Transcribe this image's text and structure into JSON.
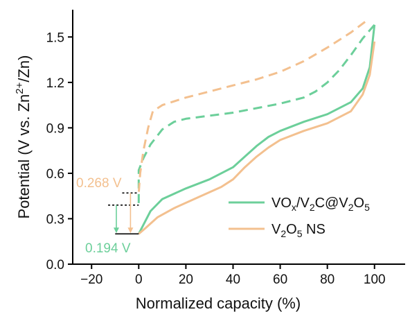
{
  "chart_data": {
    "type": "line",
    "xlabel": "Normalized capacity (%)",
    "ylabel": {
      "pre": "Potential (V vs. Zn",
      "sup": "2+",
      "post": "/Zn)"
    },
    "xlim": [
      -28,
      113
    ],
    "ylim": [
      0,
      1.68
    ],
    "xticks": [
      -20,
      0,
      20,
      40,
      60,
      80,
      100
    ],
    "yticks": [
      0.0,
      0.3,
      0.6,
      0.9,
      1.2,
      1.5
    ],
    "xtick_labels": [
      "−20",
      "0",
      "20",
      "40",
      "60",
      "80",
      "100"
    ],
    "ytick_labels": [
      "0.0",
      "0.3",
      "0.6",
      "0.9",
      "1.2",
      "1.5"
    ],
    "legend_position": "bottom-right",
    "series": [
      {
        "name": "VOx/V2C@V2O5",
        "legend": [
          {
            "t": "VO",
            "s": "n"
          },
          {
            "t": "x",
            "s": "sub"
          },
          {
            "t": "/V",
            "s": "n"
          },
          {
            "t": "2",
            "s": "sub"
          },
          {
            "t": "C@V",
            "s": "n"
          },
          {
            "t": "2",
            "s": "sub"
          },
          {
            "t": "O",
            "s": "n"
          },
          {
            "t": "5",
            "s": "sub"
          }
        ],
        "color": "#6ccf9a",
        "discharge": [
          [
            100,
            1.58
          ],
          [
            95,
            1.49
          ],
          [
            90,
            1.38
          ],
          [
            85,
            1.28
          ],
          [
            80,
            1.2
          ],
          [
            75,
            1.14
          ],
          [
            70,
            1.1
          ],
          [
            60,
            1.06
          ],
          [
            50,
            1.03
          ],
          [
            40,
            1.0
          ],
          [
            30,
            0.98
          ],
          [
            20,
            0.96
          ],
          [
            15,
            0.94
          ],
          [
            10,
            0.89
          ],
          [
            5,
            0.79
          ],
          [
            2,
            0.7
          ],
          [
            0,
            0.62
          ],
          [
            0,
            0.39
          ]
        ],
        "charge": [
          [
            0,
            0.2
          ],
          [
            2,
            0.26
          ],
          [
            5,
            0.35
          ],
          [
            10,
            0.43
          ],
          [
            20,
            0.5
          ],
          [
            30,
            0.56
          ],
          [
            40,
            0.64
          ],
          [
            45,
            0.71
          ],
          [
            50,
            0.78
          ],
          [
            55,
            0.84
          ],
          [
            60,
            0.88
          ],
          [
            70,
            0.94
          ],
          [
            80,
            0.99
          ],
          [
            90,
            1.07
          ],
          [
            95,
            1.16
          ],
          [
            98,
            1.3
          ],
          [
            100,
            1.58
          ]
        ]
      },
      {
        "name": "V2O5 NS",
        "legend": [
          {
            "t": "V",
            "s": "n"
          },
          {
            "t": "2",
            "s": "sub"
          },
          {
            "t": "O",
            "s": "n"
          },
          {
            "t": "5",
            "s": "sub"
          },
          {
            "t": " NS",
            "s": "n"
          }
        ],
        "color": "#f3c08f",
        "discharge": [
          [
            96,
            1.6
          ],
          [
            90,
            1.53
          ],
          [
            80,
            1.43
          ],
          [
            70,
            1.34
          ],
          [
            60,
            1.27
          ],
          [
            50,
            1.22
          ],
          [
            40,
            1.18
          ],
          [
            30,
            1.14
          ],
          [
            20,
            1.1
          ],
          [
            10,
            1.05
          ],
          [
            6,
            1.01
          ],
          [
            4,
            0.9
          ],
          [
            2,
            0.75
          ],
          [
            0.6,
            0.6
          ],
          [
            0,
            0.47
          ]
        ],
        "charge": [
          [
            0,
            0.2
          ],
          [
            3,
            0.24
          ],
          [
            8,
            0.31
          ],
          [
            15,
            0.37
          ],
          [
            25,
            0.44
          ],
          [
            35,
            0.51
          ],
          [
            40,
            0.56
          ],
          [
            45,
            0.64
          ],
          [
            50,
            0.71
          ],
          [
            55,
            0.77
          ],
          [
            60,
            0.82
          ],
          [
            70,
            0.88
          ],
          [
            80,
            0.93
          ],
          [
            90,
            1.01
          ],
          [
            95,
            1.12
          ],
          [
            98,
            1.25
          ],
          [
            100,
            1.47
          ]
        ]
      }
    ],
    "annotations": [
      {
        "text": "0.268 V",
        "color": "#f3c08f"
      },
      {
        "text": "0.194 V",
        "color": "#6ccf9a"
      }
    ]
  }
}
